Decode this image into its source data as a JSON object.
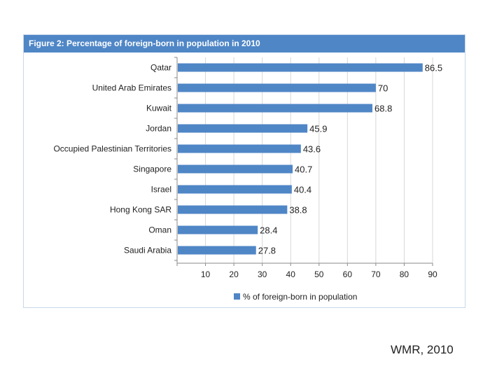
{
  "chart_data": {
    "type": "bar",
    "orientation": "horizontal",
    "title": "Figure 2: Percentage of foreign-born in population in 2010",
    "categories": [
      "Qatar",
      "United Arab Emirates",
      "Kuwait",
      "Jordan",
      "Occupied Palestinian Territories",
      "Singapore",
      "Israel",
      "Hong Kong SAR",
      "Oman",
      "Saudi Arabia"
    ],
    "values": [
      86.5,
      70,
      68.8,
      45.9,
      43.6,
      40.7,
      40.4,
      38.8,
      28.4,
      27.8
    ],
    "value_labels": [
      "86.5",
      "70",
      "68.8",
      "45.9",
      "43.6",
      "40.7",
      "40.4",
      "38.8",
      "28.4",
      "27.8"
    ],
    "xticks": [
      10,
      20,
      30,
      40,
      50,
      60,
      70,
      80,
      90
    ],
    "xlim": [
      0,
      90
    ],
    "legend": "% of foreign-born in population",
    "legend_position": "bottom",
    "grid": true,
    "bar_color": "#4f86c6"
  },
  "source_caption": "WMR, 2010"
}
